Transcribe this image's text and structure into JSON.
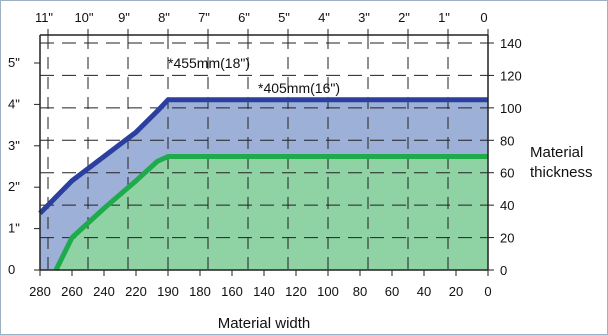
{
  "chart_data": {
    "type": "area",
    "xlabel": "Material width",
    "ylabel": "Material\nthickness",
    "x_bottom": {
      "range": [
        280,
        0
      ],
      "ticks": [
        "280",
        "260",
        "240",
        "220",
        "190",
        "180",
        "160",
        "140",
        "120",
        "100",
        "80",
        "60",
        "40",
        "20",
        "0"
      ]
    },
    "x_top": {
      "ticks": [
        "11\"",
        "10\"",
        "9\"",
        "8\"",
        "7\"",
        "6\"",
        "5\"",
        "4\"",
        "3\"",
        "2\"",
        "1\"",
        "0"
      ]
    },
    "y_right": {
      "range": [
        0,
        140
      ],
      "ticks": [
        "0",
        "20",
        "40",
        "60",
        "80",
        "100",
        "120",
        "140"
      ]
    },
    "y_left": {
      "ticks": [
        "0",
        "1\"",
        "2\"",
        "3\"",
        "4\"",
        "5\""
      ]
    },
    "grid": true,
    "series": [
      {
        "name": "455mm(18\")",
        "color": "#2b3f9e",
        "fill": "#9db0d8",
        "points": [
          [
            280,
            35
          ],
          [
            260,
            55
          ],
          [
            240,
            70
          ],
          [
            220,
            85
          ],
          [
            200,
            98
          ],
          [
            190,
            105
          ],
          [
            0,
            105
          ]
        ]
      },
      {
        "name": "405mm(16\")",
        "color": "#1faa4c",
        "fill": "#8fd3a4",
        "points": [
          [
            270,
            0
          ],
          [
            260,
            20
          ],
          [
            240,
            38
          ],
          [
            220,
            55
          ],
          [
            200,
            67
          ],
          [
            190,
            70
          ],
          [
            0,
            70
          ]
        ]
      }
    ],
    "annotations": [
      {
        "text": "*455mm(18\")"
      },
      {
        "text": "*405mm(16\")"
      }
    ]
  }
}
